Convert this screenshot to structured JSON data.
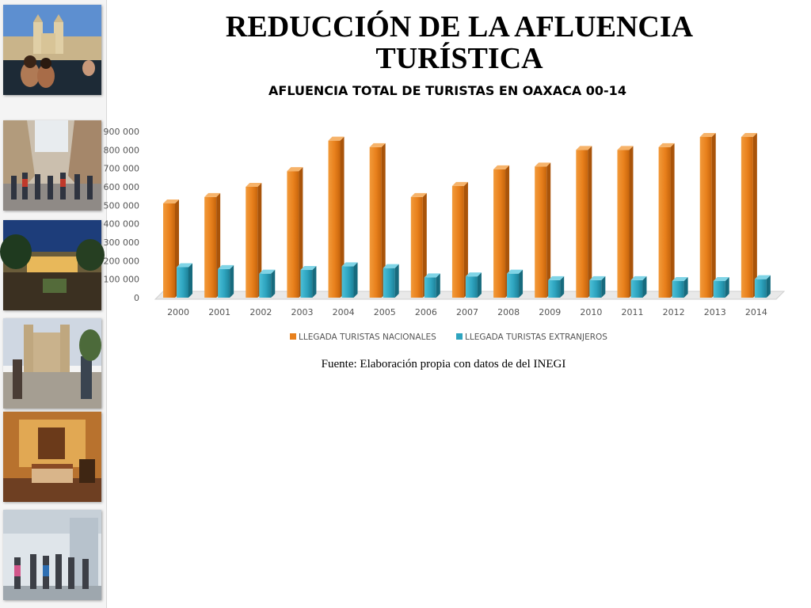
{
  "slide": {
    "title_line1": "REDUCCIÓN DE LA AFLUENCIA",
    "title_line2": "TURÍSTICA",
    "source": "Fuente: Elaboración propia con datos de del INEGI"
  },
  "photos": [
    {
      "name": "photo-cathedral-pool"
    },
    {
      "name": "photo-street-crowd"
    },
    {
      "name": "photo-night-courtyard"
    },
    {
      "name": "photo-church-tourists"
    },
    {
      "name": "photo-hotel-room"
    },
    {
      "name": "photo-airport-travelers"
    }
  ],
  "chart_data": {
    "type": "bar",
    "title": "AFLUENCIA TOTAL DE TURISTAS EN OAXACA 00-14",
    "categories": [
      "2000",
      "2001",
      "2002",
      "2003",
      "2004",
      "2005",
      "2006",
      "2007",
      "2008",
      "2009",
      "2010",
      "2011",
      "2012",
      "2013",
      "2014"
    ],
    "series": [
      {
        "name": "LLEGADA TURISTAS NACIONALES",
        "color": "#e8801c",
        "values": [
          510000,
          545000,
          600000,
          685000,
          850000,
          815000,
          545000,
          605000,
          695000,
          710000,
          800000,
          800000,
          815000,
          870000,
          870000
        ]
      },
      {
        "name": "LLEGADA TURISTAS EXTRANJEROS",
        "color": "#2ea4bf",
        "values": [
          165000,
          155000,
          130000,
          150000,
          170000,
          160000,
          110000,
          115000,
          130000,
          95000,
          95000,
          95000,
          90000,
          90000,
          100000
        ]
      }
    ],
    "ylim": [
      0,
      900000
    ],
    "yticks": [
      0,
      100000,
      200000,
      300000,
      400000,
      500000,
      600000,
      700000,
      800000,
      900000
    ],
    "ytick_labels": [
      "0",
      "100 000",
      "200 000",
      "300 000",
      "400 000",
      "500 000",
      "600 000",
      "700 000",
      "800 000",
      "900 000"
    ],
    "legend_position": "bottom",
    "grid": false
  }
}
